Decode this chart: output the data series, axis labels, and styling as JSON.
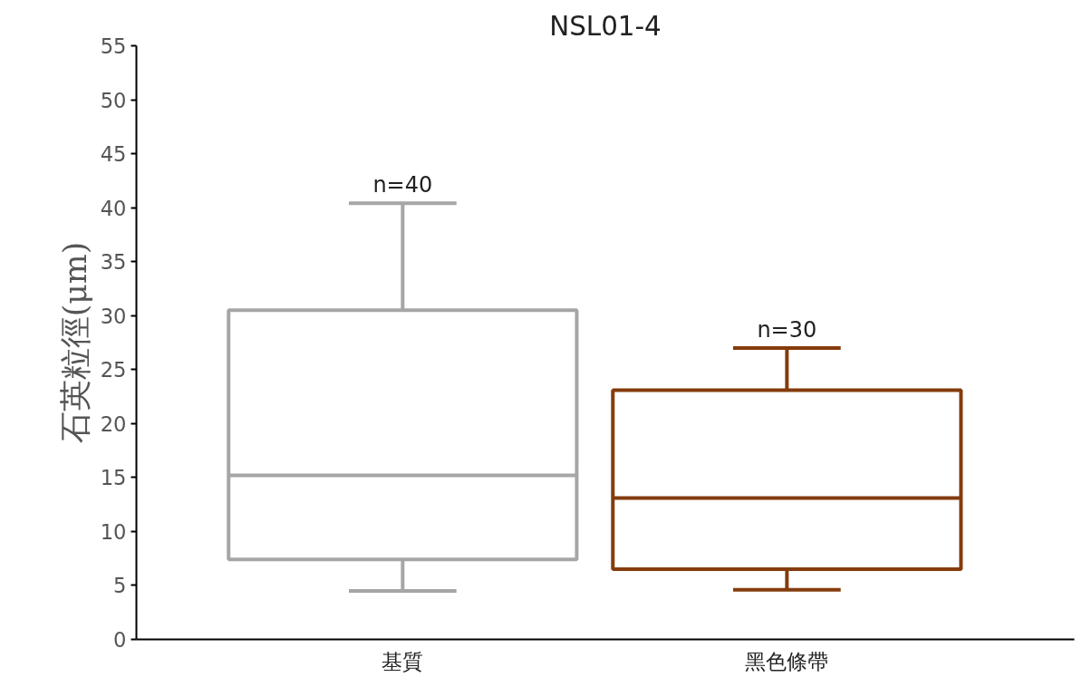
{
  "chart_data": {
    "type": "box",
    "title": "NSL01-4",
    "ylabel": "石英粒徑(μm)",
    "categories": [
      "基質",
      "黑色條帶"
    ],
    "boxes": [
      {
        "low": 4.5,
        "q1": 7.4,
        "median": 15.2,
        "q3": 30.5,
        "high": 40.4
      },
      {
        "low": 4.6,
        "q1": 6.5,
        "median": 13.1,
        "q3": 23.1,
        "high": 27.0
      }
    ],
    "colors": [
      "#a6a6a6",
      "#843c0c"
    ],
    "ylim": [
      0,
      55
    ],
    "yticks": [
      0,
      5,
      10,
      15,
      20,
      25,
      30,
      35,
      40,
      45,
      50,
      55
    ],
    "grid": false,
    "annotations": [
      {
        "text": "n=40",
        "x": "基質",
        "y": 40.4
      },
      {
        "text": "n=30",
        "x": "黑色條帶",
        "y": 27.0
      }
    ]
  }
}
